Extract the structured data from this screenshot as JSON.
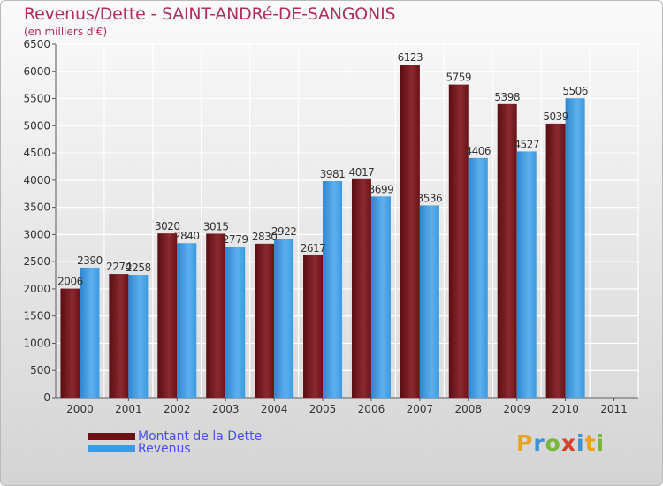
{
  "title": "Revenus/Dette - SAINT-ANDRé-DE-SANGONIS",
  "subtitle": "(en milliers d'€)",
  "logo": {
    "letters": [
      "P",
      "r",
      "o",
      "x",
      "i",
      "t",
      "i"
    ],
    "colors": [
      "#e9a21f",
      "#3d8fd6",
      "#77b83c",
      "#d6412c",
      "#3d8fd6",
      "#e9a21f",
      "#77b83c"
    ]
  },
  "colors": {
    "dette": "#6b1217",
    "revenus": "#3b9ae0",
    "title": "#b0305a",
    "legend_text": "#4a4ef0"
  },
  "chart_data": {
    "type": "bar",
    "title": "Revenus/Dette - SAINT-ANDRé-DE-SANGONIS",
    "subtitle": "(en milliers d'€)",
    "categories": [
      "2000",
      "2001",
      "2002",
      "2003",
      "2004",
      "2005",
      "2006",
      "2007",
      "2008",
      "2009",
      "2010",
      "2011"
    ],
    "series": [
      {
        "name": "Montant de la Dette",
        "values": [
          2006,
          2274,
          3020,
          3015,
          2830,
          2617,
          4017,
          6123,
          5759,
          5398,
          5039,
          null
        ]
      },
      {
        "name": "Revenus",
        "values": [
          2390,
          2258,
          2840,
          2779,
          2922,
          3981,
          3699,
          3536,
          4406,
          4527,
          5506,
          null
        ]
      }
    ],
    "ylim": [
      0,
      6500
    ],
    "yticks": [
      "0",
      "500",
      "1000",
      "1500",
      "2000",
      "2500",
      "3000",
      "3500",
      "4000",
      "4500",
      "5000",
      "5500",
      "6000",
      "6500"
    ],
    "grid": true,
    "legend": "bottom-left"
  }
}
